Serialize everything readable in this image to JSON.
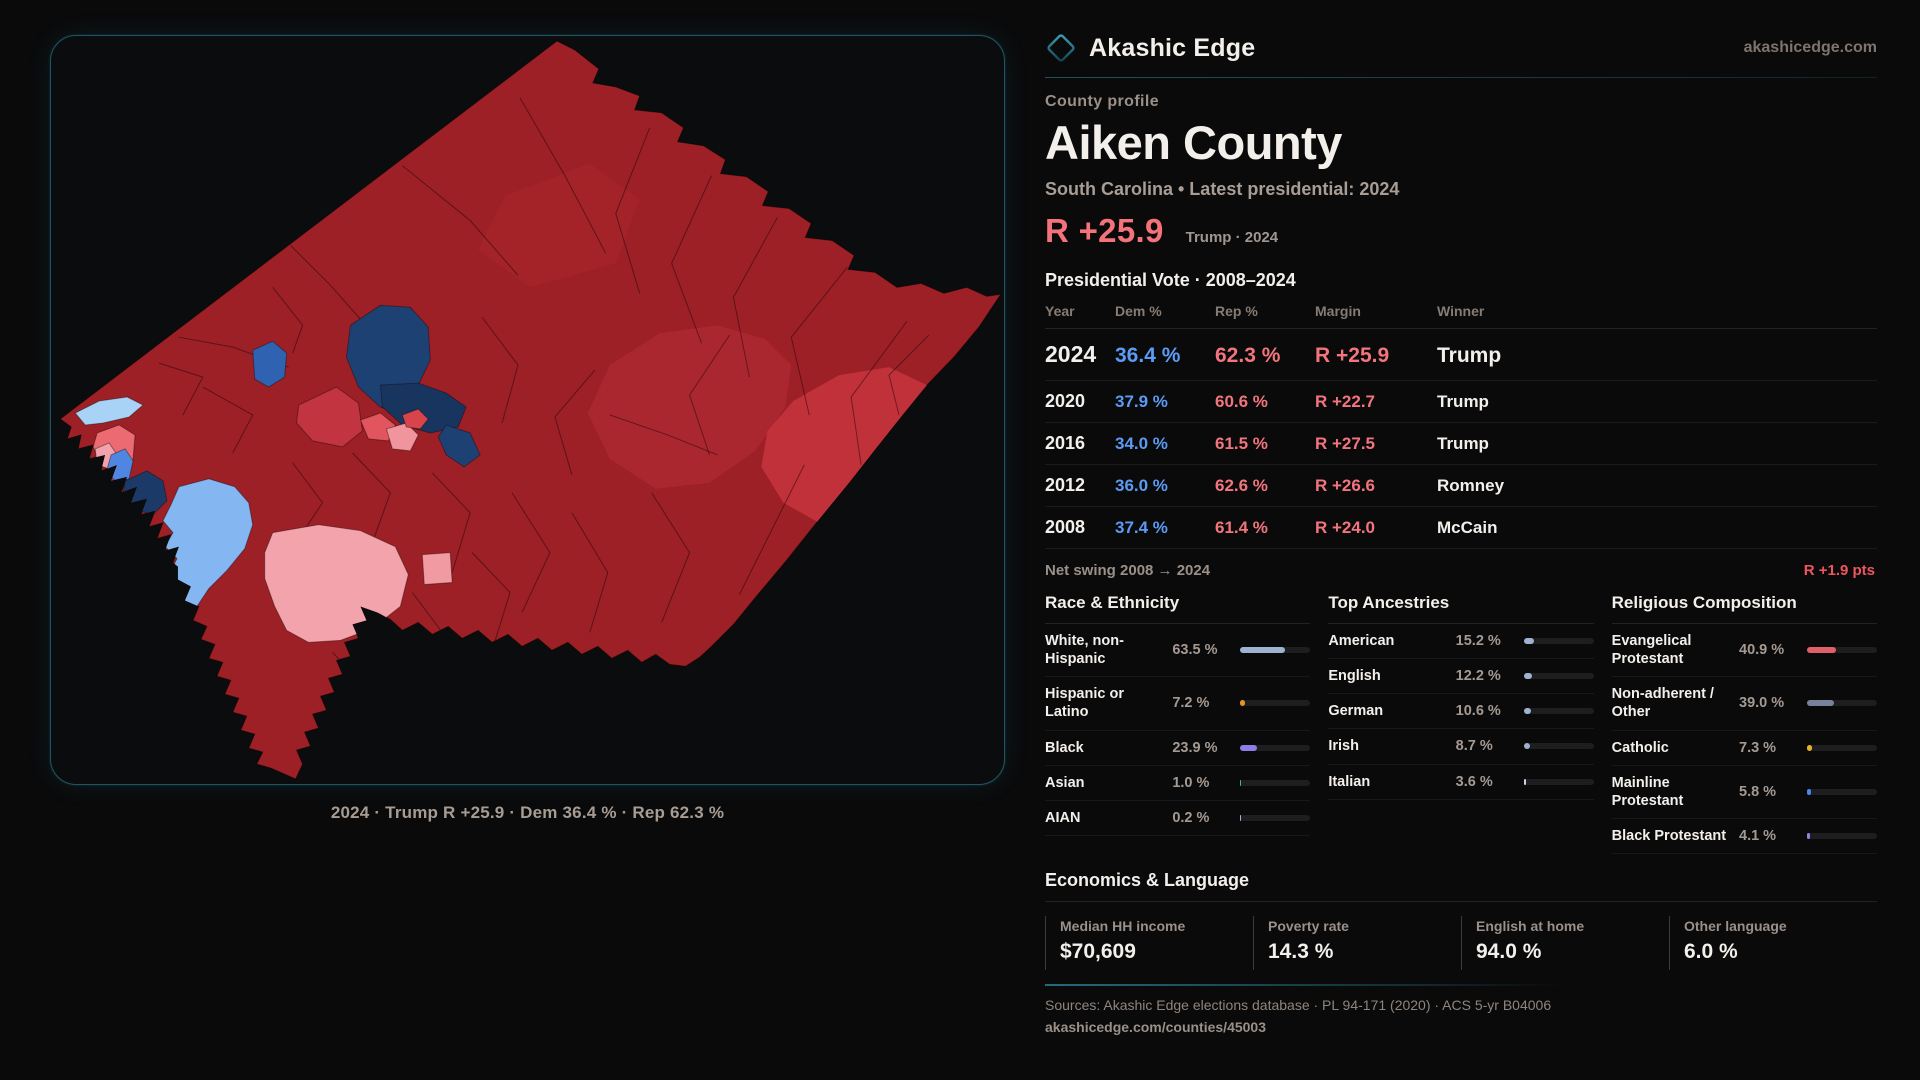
{
  "colors": {
    "text": "#f3efeb",
    "muted": "#a79c93",
    "dem": "#5b9bf5",
    "rep": "#f2757d",
    "rep-bright": "#f4737b",
    "red-bright": "#ee5560",
    "accent": "#2e8d9e"
  },
  "brand": {
    "name": "Akashic Edge",
    "domain": "akashicedge.com"
  },
  "profile": {
    "kicker": "County profile",
    "title": "Aiken County",
    "subtitle": "South Carolina • Latest presidential: 2024",
    "headline_margin": "R +25.9",
    "headline_note": "Trump · 2024"
  },
  "map": {
    "caption": "2024 · Trump R +25.9 · Dem 36.4 % · Rep 62.3 %"
  },
  "vote": {
    "title": "Presidential Vote · 2008–2024",
    "columns": [
      "Year",
      "Dem %",
      "Rep %",
      "Margin",
      "Winner"
    ],
    "rows": [
      {
        "year": "2024",
        "dem": "36.4 %",
        "rep": "62.3 %",
        "margin": "R +25.9",
        "winner": "Trump"
      },
      {
        "year": "2020",
        "dem": "37.9 %",
        "rep": "60.6 %",
        "margin": "R +22.7",
        "winner": "Trump"
      },
      {
        "year": "2016",
        "dem": "34.0 %",
        "rep": "61.5 %",
        "margin": "R +27.5",
        "winner": "Trump"
      },
      {
        "year": "2012",
        "dem": "36.0 %",
        "rep": "62.6 %",
        "margin": "R +26.6",
        "winner": "Romney"
      },
      {
        "year": "2008",
        "dem": "37.4 %",
        "rep": "61.4 %",
        "margin": "R +24.0",
        "winner": "McCain"
      }
    ],
    "net_swing_label": "Net swing 2008 → 2024",
    "net_swing_value": "R +1.9 pts"
  },
  "race": {
    "title": "Race & Ethnicity",
    "rows": [
      {
        "label": "White, non-Hispanic",
        "value": "63.5 %",
        "pct": 63.5,
        "color": "#9db3cf"
      },
      {
        "label": "Hispanic or Latino",
        "value": "7.2 %",
        "pct": 7.2,
        "color": "#e2951f"
      },
      {
        "label": "Black",
        "value": "23.9 %",
        "pct": 23.9,
        "color": "#8f7ce8"
      },
      {
        "label": "Asian",
        "value": "1.0 %",
        "pct": 1.0,
        "color": "#2bbf9e"
      },
      {
        "label": "AIAN",
        "value": "0.2 %",
        "pct": 0.2,
        "color": "#9db3cf"
      }
    ]
  },
  "ancestries": {
    "title": "Top Ancestries",
    "rows": [
      {
        "label": "American",
        "value": "15.2 %",
        "pct": 15.2,
        "color": "#9db3cf"
      },
      {
        "label": "English",
        "value": "12.2 %",
        "pct": 12.2,
        "color": "#9db3cf"
      },
      {
        "label": "German",
        "value": "10.6 %",
        "pct": 10.6,
        "color": "#9db3cf"
      },
      {
        "label": "Irish",
        "value": "8.7 %",
        "pct": 8.7,
        "color": "#9db3cf"
      },
      {
        "label": "Italian",
        "value": "3.6 %",
        "pct": 3.6,
        "color": "#c6d4e4"
      }
    ]
  },
  "religion": {
    "title": "Religious Composition",
    "rows": [
      {
        "label": "Evangelical Protestant",
        "value": "40.9 %",
        "pct": 40.9,
        "color": "#e05f68"
      },
      {
        "label": "Non-adherent / Other",
        "value": "39.0 %",
        "pct": 39.0,
        "color": "#78829b"
      },
      {
        "label": "Catholic",
        "value": "7.3 %",
        "pct": 7.3,
        "color": "#e3b32a"
      },
      {
        "label": "Mainline Protestant",
        "value": "5.8 %",
        "pct": 5.8,
        "color": "#4a86e8"
      },
      {
        "label": "Black Protestant",
        "value": "4.1 %",
        "pct": 4.1,
        "color": "#937fe8"
      }
    ]
  },
  "economics": {
    "title": "Economics & Language",
    "stats": [
      {
        "label": "Median HH income",
        "value": "$70,609"
      },
      {
        "label": "Poverty rate",
        "value": "14.3 %"
      },
      {
        "label": "English at home",
        "value": "94.0 %"
      },
      {
        "label": "Other language",
        "value": "6.0 %"
      }
    ]
  },
  "footer": {
    "sources": "Sources: Akashic Edge elections database · PL 94-171 (2020) · ACS 5-yr B04006",
    "permalink": "akashicedge.com/counties/45003"
  }
}
